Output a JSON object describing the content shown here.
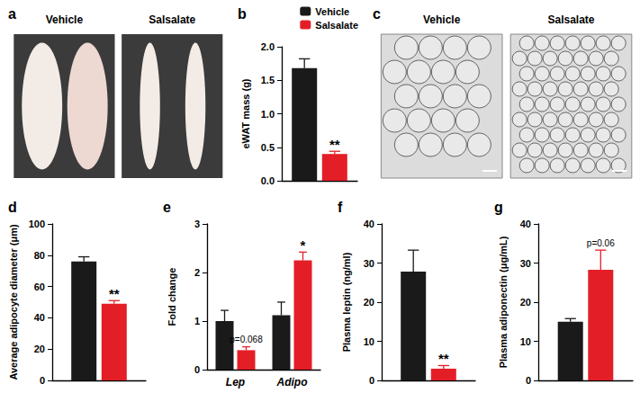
{
  "chart_data": [
    {
      "type": "image",
      "title": "a",
      "labels": [
        "Vehicle",
        "Salsalate"
      ]
    },
    {
      "type": "bar",
      "title": "b",
      "ylabel": "eWAT mass (g)",
      "categories": [
        null
      ],
      "series": [
        {
          "name": "Vehicle",
          "color": "#1a1a1a",
          "values": [
            1.68
          ],
          "errors": [
            0.14
          ]
        },
        {
          "name": "Salsalate",
          "color": "#e41e26",
          "values": [
            0.4
          ],
          "errors": [
            0.04
          ]
        }
      ],
      "ylim": [
        0,
        2
      ],
      "yticks": [
        {
          "value": 0,
          "label": "0.0"
        },
        {
          "value": 0.5,
          "label": "0.5"
        },
        {
          "value": 1,
          "label": "1.0"
        },
        {
          "value": 1.5,
          "label": "1.5"
        },
        {
          "value": 2,
          "label": "2.0"
        }
      ],
      "grid": false,
      "legend": "top-right",
      "annotations": [
        {
          "series": "Salsalate",
          "text": "**"
        }
      ]
    },
    {
      "type": "image",
      "title": "c",
      "labels": [
        "Vehicle",
        "Salsalate"
      ]
    },
    {
      "type": "bar",
      "title": "d",
      "ylabel": "Average adipocyte diameter (μm)",
      "categories": [
        null
      ],
      "series": [
        {
          "name": "Vehicle",
          "color": "#1a1a1a",
          "values": [
            76
          ],
          "errors": [
            3
          ]
        },
        {
          "name": "Salsalate",
          "color": "#e41e26",
          "values": [
            49
          ],
          "errors": [
            2
          ]
        }
      ],
      "ylim": [
        0,
        100
      ],
      "yticks": [
        0,
        20,
        40,
        60,
        80,
        100
      ],
      "grid": false,
      "annotations": [
        {
          "series": "Salsalate",
          "text": "**"
        }
      ]
    },
    {
      "type": "bar",
      "title": "e",
      "ylabel": "Fold change",
      "categories": [
        "Lep",
        "Adipo"
      ],
      "series": [
        {
          "name": "Vehicle",
          "color": "#1a1a1a",
          "values": [
            1.0,
            1.12
          ],
          "errors": [
            0.22,
            0.27
          ]
        },
        {
          "name": "Salsalate",
          "color": "#e41e26",
          "values": [
            0.4,
            2.25
          ],
          "errors": [
            0.07,
            0.17
          ]
        }
      ],
      "ylim": [
        0,
        3
      ],
      "yticks": [
        0,
        1,
        2,
        3
      ],
      "grid": false,
      "annotations": [
        {
          "series": "Salsalate",
          "category": "Lep",
          "text": "p=0.068"
        },
        {
          "series": "Salsalate",
          "category": "Adipo",
          "text": "*"
        }
      ]
    },
    {
      "type": "bar",
      "title": "f",
      "ylabel": "Plasma leptin (ng/ml)",
      "categories": [
        null
      ],
      "series": [
        {
          "name": "Vehicle",
          "color": "#1a1a1a",
          "values": [
            27.8
          ],
          "errors": [
            5.5
          ]
        },
        {
          "name": "Salsalate",
          "color": "#e41e26",
          "values": [
            3.0
          ],
          "errors": [
            0.8
          ]
        }
      ],
      "ylim": [
        0,
        40
      ],
      "yticks": [
        0,
        10,
        20,
        30,
        40
      ],
      "grid": false,
      "annotations": [
        {
          "series": "Salsalate",
          "text": "**"
        }
      ]
    },
    {
      "type": "bar",
      "title": "g",
      "ylabel": "Plasma adiponectin (μg/mL)",
      "categories": [
        null
      ],
      "series": [
        {
          "name": "Vehicle",
          "color": "#1a1a1a",
          "values": [
            15
          ],
          "errors": [
            0.8
          ]
        },
        {
          "name": "Salsalate",
          "color": "#e41e26",
          "values": [
            28.3
          ],
          "errors": [
            5
          ]
        }
      ],
      "ylim": [
        0,
        40
      ],
      "yticks": [
        0,
        10,
        20,
        30,
        40
      ],
      "grid": false,
      "annotations": [
        {
          "series": "Salsalate",
          "text": "p=0.06"
        }
      ]
    }
  ]
}
